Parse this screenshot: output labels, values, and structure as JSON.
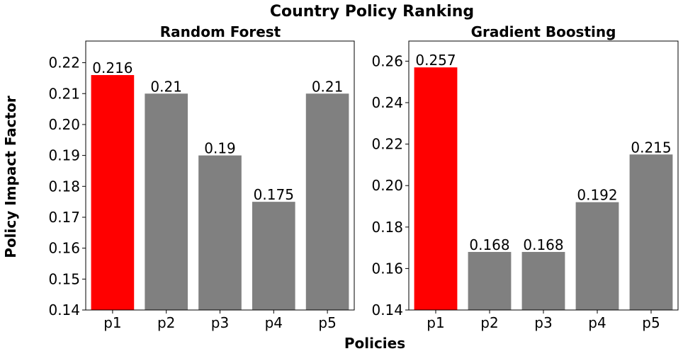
{
  "figure": {
    "title": "Country Policy Ranking",
    "xlabel": "Policies",
    "ylabel": "Policy Impact Factor"
  },
  "colors": {
    "highlight": "#ff0000",
    "default": "#808080"
  },
  "chart_data": [
    {
      "type": "bar",
      "title": "Random Forest",
      "categories": [
        "p1",
        "p2",
        "p3",
        "p4",
        "p5"
      ],
      "values": [
        0.216,
        0.21,
        0.19,
        0.175,
        0.21
      ],
      "value_labels": [
        "0.216",
        "0.21",
        "0.19",
        "0.175",
        "0.21"
      ],
      "highlight_index": 0,
      "ylim": [
        0.14,
        0.227
      ],
      "yticks": [
        0.14,
        0.15,
        0.16,
        0.17,
        0.18,
        0.19,
        0.2,
        0.21,
        0.22
      ],
      "ytick_labels": [
        "0.14",
        "0.15",
        "0.16",
        "0.17",
        "0.18",
        "0.19",
        "0.20",
        "0.21",
        "0.22"
      ],
      "grid": false
    },
    {
      "type": "bar",
      "title": "Gradient Boosting",
      "categories": [
        "p1",
        "p2",
        "p3",
        "p4",
        "p5"
      ],
      "values": [
        0.257,
        0.168,
        0.168,
        0.192,
        0.215
      ],
      "value_labels": [
        "0.257",
        "0.168",
        "0.168",
        "0.192",
        "0.215"
      ],
      "highlight_index": 0,
      "ylim": [
        0.14,
        0.2697
      ],
      "yticks": [
        0.14,
        0.16,
        0.18,
        0.2,
        0.22,
        0.24,
        0.26
      ],
      "ytick_labels": [
        "0.14",
        "0.16",
        "0.18",
        "0.20",
        "0.22",
        "0.24",
        "0.26"
      ],
      "grid": false
    }
  ]
}
